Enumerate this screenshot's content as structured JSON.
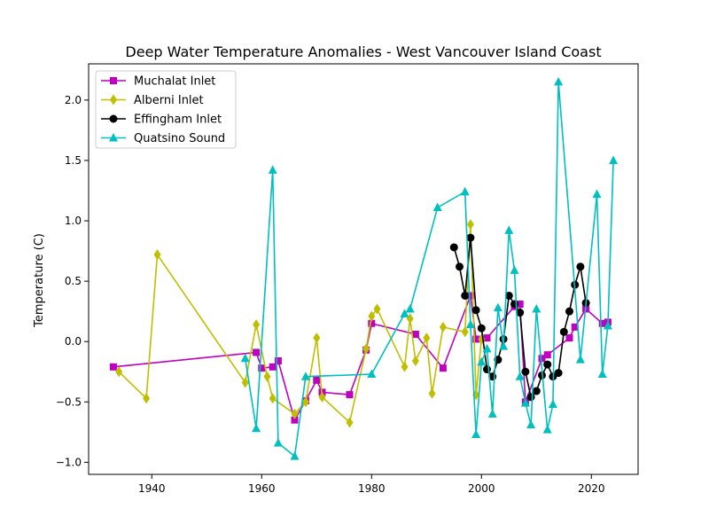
{
  "chart_data": {
    "type": "line",
    "title": "Deep Water Temperature Anomalies - West Vancouver Island Coast",
    "xlabel": "",
    "ylabel": "Temperature (C)",
    "xlim": [
      1928.5,
      2028.5
    ],
    "ylim": [
      -1.1,
      2.3
    ],
    "xticks": [
      1940,
      1960,
      1980,
      2000,
      2020
    ],
    "yticks": [
      -1.0,
      -0.5,
      0.0,
      0.5,
      1.0,
      1.5,
      2.0
    ],
    "xtick_labels": [
      "1940",
      "1960",
      "1980",
      "2000",
      "2020"
    ],
    "ytick_labels": [
      "−1.0",
      "−0.5",
      "0.0",
      "0.5",
      "1.0",
      "1.5",
      "2.0"
    ],
    "legend_position": "top-left",
    "grid": false,
    "series": [
      {
        "name": "Muchalat Inlet",
        "color": "#bf00bf",
        "marker": "square",
        "x": [
          1933,
          1959,
          1960,
          1962,
          1963,
          1966,
          1968,
          1970,
          1971,
          1976,
          1979,
          1980,
          1988,
          1993,
          1998,
          1999,
          2001,
          2006,
          2007,
          2008,
          2011,
          2012,
          2016,
          2017,
          2019,
          2022,
          2023
        ],
        "y": [
          -0.21,
          -0.09,
          -0.22,
          -0.21,
          -0.16,
          -0.65,
          -0.49,
          -0.32,
          -0.42,
          -0.44,
          -0.07,
          0.15,
          0.06,
          -0.22,
          0.38,
          0.02,
          0.03,
          0.29,
          0.31,
          -0.5,
          -0.14,
          -0.11,
          0.03,
          0.12,
          0.27,
          0.15,
          0.16
        ]
      },
      {
        "name": "Alberni Inlet",
        "color": "#bfbf00",
        "marker": "diamond",
        "x": [
          1934,
          1939,
          1941,
          1957,
          1959,
          1961,
          1962,
          1966,
          1968,
          1970,
          1971,
          1976,
          1979,
          1980,
          1981,
          1986,
          1987,
          1988,
          1990,
          1991,
          1993,
          1997,
          1998,
          1999,
          2000
        ],
        "y": [
          -0.25,
          -0.47,
          0.72,
          -0.34,
          0.14,
          -0.29,
          -0.47,
          -0.6,
          -0.5,
          0.03,
          -0.46,
          -0.67,
          -0.06,
          0.21,
          0.27,
          -0.21,
          0.19,
          -0.16,
          0.03,
          -0.43,
          0.12,
          0.08,
          0.97,
          -0.44,
          0.02
        ]
      },
      {
        "name": "Effingham Inlet",
        "color": "#000000",
        "marker": "circle",
        "x": [
          1995,
          1996,
          1997,
          1998,
          1999,
          2000,
          2001,
          2002,
          2003,
          2004,
          2005,
          2006,
          2007,
          2008,
          2009,
          2010,
          2011,
          2012,
          2013,
          2014,
          2015,
          2016,
          2017,
          2018,
          2019
        ],
        "y": [
          0.78,
          0.62,
          0.38,
          0.86,
          0.26,
          0.11,
          -0.23,
          -0.29,
          -0.15,
          0.02,
          0.38,
          0.31,
          0.24,
          -0.25,
          -0.46,
          -0.41,
          -0.28,
          -0.19,
          -0.29,
          -0.26,
          0.08,
          0.25,
          0.47,
          0.62,
          0.32
        ]
      },
      {
        "name": "Quatsino Sound",
        "color": "#00bfbf",
        "marker": "triangle",
        "x": [
          1957,
          1959,
          1962,
          1963,
          1966,
          1968,
          1980,
          1986,
          1987,
          1992,
          1997,
          1998,
          1999,
          2000,
          2001,
          2002,
          2003,
          2004,
          2005,
          2006,
          2007,
          2008,
          2009,
          2010,
          2012,
          2013,
          2014,
          2018,
          2021,
          2022,
          2023,
          2024
        ],
        "y": [
          -0.14,
          -0.72,
          1.42,
          -0.84,
          -0.95,
          -0.29,
          -0.27,
          0.23,
          0.27,
          1.11,
          1.24,
          0.14,
          -0.77,
          -0.17,
          -0.06,
          -0.6,
          0.28,
          -0.04,
          0.92,
          0.59,
          -0.29,
          -0.51,
          -0.69,
          0.27,
          -0.73,
          -0.52,
          2.15,
          -0.15,
          1.22,
          -0.27,
          0.13,
          1.5
        ]
      }
    ]
  }
}
